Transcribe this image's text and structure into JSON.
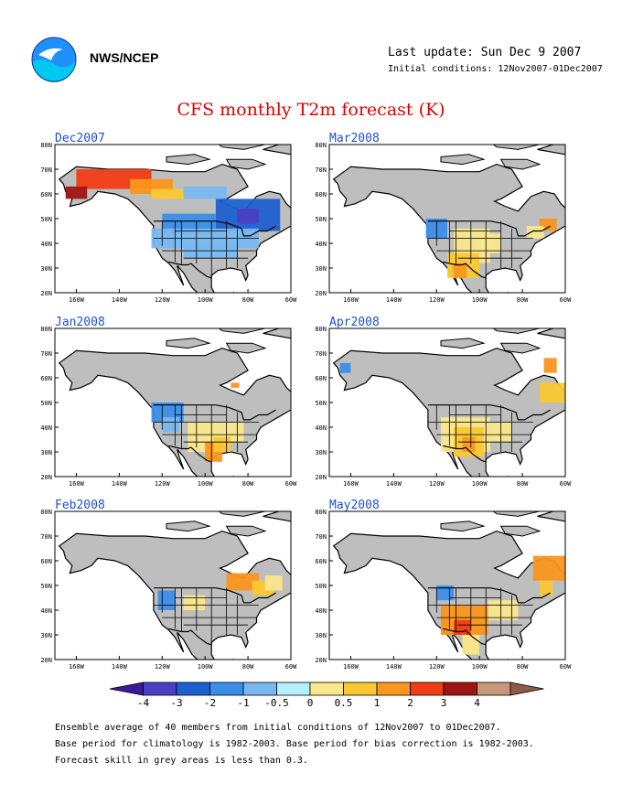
{
  "header": {
    "org": "NWS/NCEP",
    "last_update": "Last update: Sun Dec 9 2007",
    "initial_conditions": "Initial conditions: 12Nov2007-01Dec2007"
  },
  "title": "CFS monthly T2m forecast (K)",
  "colors": {
    "grey": "#bebebe",
    "bins": [
      "#3b1a9a",
      "#4a3fc4",
      "#1e5fd0",
      "#3b8ee8",
      "#78b8f0",
      "#b4f0fa",
      "#fae68c",
      "#fac832",
      "#fa961e",
      "#f03c14",
      "#a01414",
      "#c89678",
      "#8c5a46"
    ]
  },
  "chart_data": [
    {
      "type": "heatmap",
      "title": "Dec2007",
      "x_ticks": [
        "160W",
        "140W",
        "120W",
        "100W",
        "80W",
        "60W"
      ],
      "y_ticks": [
        "20N",
        "30N",
        "40N",
        "50N",
        "60N",
        "70N",
        "80N"
      ],
      "xlim": [
        -170,
        -60
      ],
      "ylim": [
        20,
        80
      ],
      "anomaly_regions": [
        {
          "lon": [
            -160,
            -125
          ],
          "lat": [
            62,
            70
          ],
          "value": 3
        },
        {
          "lon": [
            -165,
            -155
          ],
          "lat": [
            58,
            63
          ],
          "value": 4
        },
        {
          "lon": [
            -135,
            -115
          ],
          "lat": [
            60,
            66
          ],
          "value": 2
        },
        {
          "lon": [
            -125,
            -105
          ],
          "lat": [
            58,
            62
          ],
          "value": 1
        },
        {
          "lon": [
            -110,
            -90
          ],
          "lat": [
            58,
            63
          ],
          "value": -0.5
        },
        {
          "lon": [
            -95,
            -65
          ],
          "lat": [
            45,
            58
          ],
          "value": -2
        },
        {
          "lon": [
            -85,
            -75
          ],
          "lat": [
            48,
            54
          ],
          "value": -3
        },
        {
          "lon": [
            -120,
            -95
          ],
          "lat": [
            44,
            52
          ],
          "value": -1
        },
        {
          "lon": [
            -125,
            -75
          ],
          "lat": [
            38,
            46
          ],
          "value": -0.5
        },
        {
          "lon": [
            -110,
            -85
          ],
          "lat": [
            34,
            40
          ],
          "value": -0.5
        }
      ]
    },
    {
      "type": "heatmap",
      "title": "Mar2008",
      "x_ticks": [
        "160W",
        "140W",
        "120W",
        "100W",
        "80W",
        "60W"
      ],
      "y_ticks": [
        "20N",
        "30N",
        "40N",
        "50N",
        "60N",
        "70N",
        "80N"
      ],
      "xlim": [
        -170,
        -60
      ],
      "ylim": [
        20,
        80
      ],
      "anomaly_regions": [
        {
          "lon": [
            -125,
            -115
          ],
          "lat": [
            42,
            50
          ],
          "value": -1
        },
        {
          "lon": [
            -112,
            -95
          ],
          "lat": [
            32,
            46
          ],
          "value": 0.5
        },
        {
          "lon": [
            -115,
            -100
          ],
          "lat": [
            26,
            36
          ],
          "value": 1
        },
        {
          "lon": [
            -112,
            -106
          ],
          "lat": [
            26,
            32
          ],
          "value": 2
        },
        {
          "lon": [
            -100,
            -90
          ],
          "lat": [
            36,
            44
          ],
          "value": 0.5
        },
        {
          "lon": [
            -72,
            -64
          ],
          "lat": [
            45,
            50
          ],
          "value": 2
        },
        {
          "lon": [
            -78,
            -70
          ],
          "lat": [
            42,
            47
          ],
          "value": 0.5
        }
      ]
    },
    {
      "type": "heatmap",
      "title": "Jan2008",
      "x_ticks": [
        "160W",
        "140W",
        "120W",
        "100W",
        "80W",
        "60W"
      ],
      "y_ticks": [
        "20N",
        "30N",
        "40N",
        "50N",
        "60N",
        "70N",
        "80N"
      ],
      "xlim": [
        -170,
        -60
      ],
      "ylim": [
        20,
        80
      ],
      "anomaly_regions": [
        {
          "lon": [
            -125,
            -110
          ],
          "lat": [
            42,
            50
          ],
          "value": -1
        },
        {
          "lon": [
            -120,
            -112
          ],
          "lat": [
            38,
            44
          ],
          "value": -0.5
        },
        {
          "lon": [
            -108,
            -92
          ],
          "lat": [
            30,
            42
          ],
          "value": 0.5
        },
        {
          "lon": [
            -100,
            -92
          ],
          "lat": [
            26,
            34
          ],
          "value": 2
        },
        {
          "lon": [
            -92,
            -82
          ],
          "lat": [
            34,
            42
          ],
          "value": 0.5
        },
        {
          "lon": [
            -96,
            -88
          ],
          "lat": [
            30,
            36
          ],
          "value": 1
        },
        {
          "lon": [
            -88,
            -84
          ],
          "lat": [
            56,
            58
          ],
          "value": 2
        }
      ]
    },
    {
      "type": "heatmap",
      "title": "Apr2008",
      "x_ticks": [
        "160W",
        "140W",
        "120W",
        "100W",
        "80W",
        "60W"
      ],
      "y_ticks": [
        "20N",
        "30N",
        "40N",
        "50N",
        "60N",
        "70N",
        "80N"
      ],
      "xlim": [
        -170,
        -60
      ],
      "ylim": [
        20,
        80
      ],
      "anomaly_regions": [
        {
          "lon": [
            -118,
            -95
          ],
          "lat": [
            30,
            44
          ],
          "value": 0.5
        },
        {
          "lon": [
            -112,
            -98
          ],
          "lat": [
            28,
            40
          ],
          "value": 1
        },
        {
          "lon": [
            -108,
            -102
          ],
          "lat": [
            30,
            36
          ],
          "value": 2
        },
        {
          "lon": [
            -95,
            -85
          ],
          "lat": [
            34,
            42
          ],
          "value": 0.5
        },
        {
          "lon": [
            -72,
            -60
          ],
          "lat": [
            50,
            58
          ],
          "value": 1
        },
        {
          "lon": [
            -70,
            -64
          ],
          "lat": [
            62,
            68
          ],
          "value": 2
        },
        {
          "lon": [
            -165,
            -160
          ],
          "lat": [
            62,
            66
          ],
          "value": -1
        }
      ]
    },
    {
      "type": "heatmap",
      "title": "Feb2008",
      "x_ticks": [
        "160W",
        "140W",
        "120W",
        "100W",
        "80W",
        "60W"
      ],
      "y_ticks": [
        "20N",
        "30N",
        "40N",
        "50N",
        "60N",
        "70N",
        "80N"
      ],
      "xlim": [
        -170,
        -60
      ],
      "ylim": [
        20,
        80
      ],
      "anomaly_regions": [
        {
          "lon": [
            -90,
            -75
          ],
          "lat": [
            48,
            55
          ],
          "value": 2
        },
        {
          "lon": [
            -78,
            -68
          ],
          "lat": [
            46,
            52
          ],
          "value": 1
        },
        {
          "lon": [
            -72,
            -64
          ],
          "lat": [
            48,
            54
          ],
          "value": 0.5
        },
        {
          "lon": [
            -122,
            -114
          ],
          "lat": [
            40,
            48
          ],
          "value": -1
        },
        {
          "lon": [
            -110,
            -100
          ],
          "lat": [
            40,
            46
          ],
          "value": 0.5
        }
      ]
    },
    {
      "type": "heatmap",
      "title": "May2008",
      "x_ticks": [
        "160W",
        "140W",
        "120W",
        "100W",
        "80W",
        "60W"
      ],
      "y_ticks": [
        "20N",
        "30N",
        "40N",
        "50N",
        "60N",
        "70N",
        "80N"
      ],
      "xlim": [
        -170,
        -60
      ],
      "ylim": [
        20,
        80
      ],
      "anomaly_regions": [
        {
          "lon": [
            -75,
            -60
          ],
          "lat": [
            52,
            62
          ],
          "value": 2
        },
        {
          "lon": [
            -72,
            -66
          ],
          "lat": [
            46,
            52
          ],
          "value": 1
        },
        {
          "lon": [
            -120,
            -112
          ],
          "lat": [
            44,
            50
          ],
          "value": -1
        },
        {
          "lon": [
            -118,
            -96
          ],
          "lat": [
            30,
            42
          ],
          "value": 2
        },
        {
          "lon": [
            -112,
            -104
          ],
          "lat": [
            30,
            36
          ],
          "value": 3
        },
        {
          "lon": [
            -108,
            -100
          ],
          "lat": [
            22,
            30
          ],
          "value": 0.5
        },
        {
          "lon": [
            -96,
            -82
          ],
          "lat": [
            36,
            44
          ],
          "value": 0.5
        }
      ]
    }
  ],
  "colorbar": {
    "labels": [
      "-4",
      "-3",
      "-2",
      "-1",
      "-0.5",
      "0",
      "0.5",
      "1",
      "2",
      "3",
      "4"
    ]
  },
  "footer": {
    "line1": "Ensemble average of 40 members from initial conditions of 12Nov2007 to 01Dec2007.",
    "line2": "Base period for climatology is 1982-2003. Base period for bias correction is 1982-2003.",
    "line3": "Forecast skill in grey areas is less than 0.3."
  }
}
